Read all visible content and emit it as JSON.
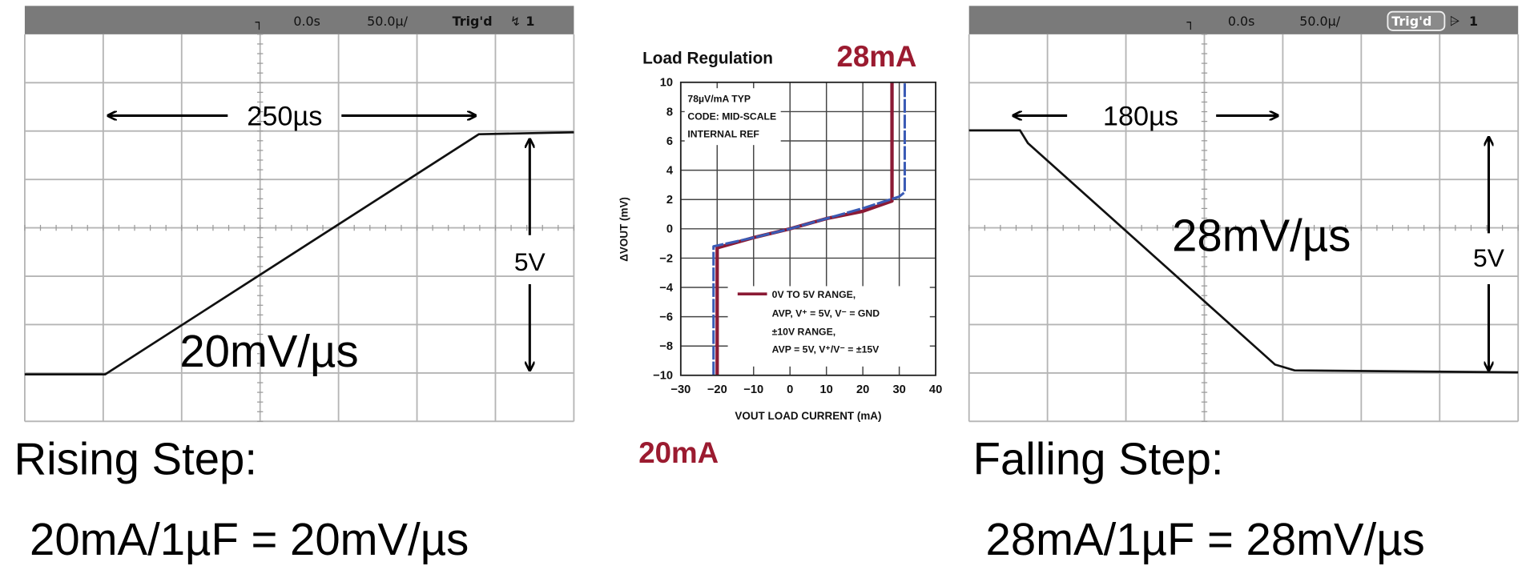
{
  "left_scope": {
    "header": {
      "time": "0.0s",
      "timebase": "50.0µ/",
      "trigger": "Trig'd",
      "trigger_icon": "rising-edge-icon",
      "channel": "1"
    },
    "duration_label": "250µs",
    "amplitude_label": "5V",
    "slew_label": "20mV/µs"
  },
  "right_scope": {
    "header": {
      "time": "0.0s",
      "timebase": "50.0µ/",
      "trigger": "Trig'd",
      "trigger_icon": "falling-edge-icon",
      "channel": "1"
    },
    "duration_label": "180µs",
    "amplitude_label": "5V",
    "slew_label": "28mV/µs"
  },
  "captions": {
    "rising_title": "Rising Step:",
    "rising_formula": "20mA/1µF = 20mV/µs",
    "falling_title": "Falling Step:",
    "falling_formula": "28mA/1µF = 28mV/µs"
  },
  "callouts": {
    "top": "28mA",
    "bottom": "20mA",
    "color": "#9b1b30"
  },
  "chart_data": {
    "type": "line",
    "title": "Load Regulation",
    "xlabel": "VOUT LOAD CURRENT (mA)",
    "ylabel": "ΔVOUT (mV)",
    "xlim": [
      -30,
      40
    ],
    "ylim": [
      -10,
      10
    ],
    "xticks": [
      "−30",
      "−20",
      "−10",
      "0",
      "10",
      "20",
      "30",
      "40"
    ],
    "yticks": [
      "−10",
      "−8",
      "−6",
      "−4",
      "−2",
      "0",
      "2",
      "4",
      "6",
      "8",
      "10"
    ],
    "grid": true,
    "annotations": [
      "78µV/mA TYP",
      "CODE: MID-SCALE",
      "INTERNAL REF"
    ],
    "legend": {
      "placement": "bottom-right",
      "lines": [
        "0V TO 5V RANGE,",
        "AVP, V⁺ = 5V, V⁻ = GND",
        "±10V RANGE,",
        "AVP = 5V, V⁺/V⁻ = ±15V"
      ]
    },
    "series": [
      {
        "color": "#8b1a35",
        "style": "solid",
        "x": [
          -20,
          -20,
          -10,
          0,
          10,
          20,
          28,
          28
        ],
        "y": [
          -10,
          -1.3,
          -0.6,
          0,
          0.7,
          1.2,
          1.9,
          10
        ]
      },
      {
        "color": "#3a5bb5",
        "style": "dashed",
        "x": [
          -21,
          -21,
          -10,
          0,
          10,
          20,
          30,
          31.5,
          31.5
        ],
        "y": [
          -10,
          -1.2,
          -0.6,
          0,
          0.7,
          1.4,
          2.2,
          2.5,
          10
        ]
      }
    ]
  }
}
